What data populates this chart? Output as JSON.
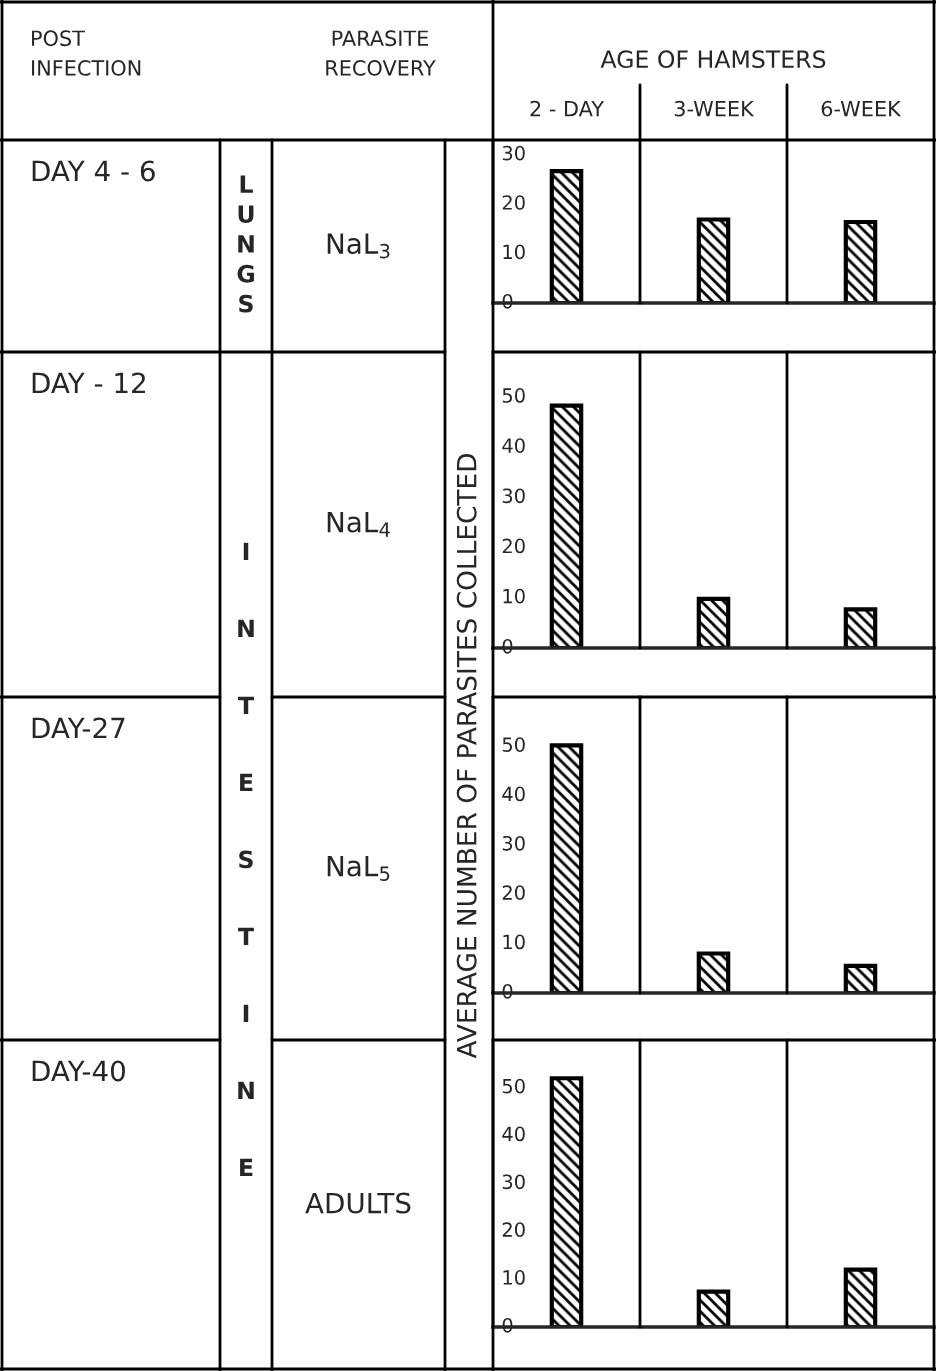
{
  "chart_data": [
    {
      "type": "bar",
      "title": "AGE OF HAMSTERS",
      "ylabel": "AVERAGE NUMBER OF PARASITES COLLECTED",
      "categories": [
        "2 - DAY",
        "3-WEEK",
        "6-WEEK"
      ],
      "values": [
        26.7,
        16.9,
        16.4
      ],
      "color": "#000000",
      "ylim": [
        0,
        33
      ],
      "yticks": [
        0,
        10,
        20,
        30
      ],
      "annotations": [
        "DAY 4 - 6",
        "NaL$_{3}$",
        "LUNGS",
        "POST\nINFECTION",
        "PARASITE\nRECOVERY"
      ]
    },
    {
      "type": "bar",
      "categories": [
        null,
        null,
        null
      ],
      "values": [
        48.3,
        9.8,
        7.7
      ],
      "color": "#000000",
      "ylim": [
        0,
        59
      ],
      "yticks": [
        0,
        10,
        20,
        30,
        40,
        50
      ],
      "tick_labels": "y",
      "annotations": [
        "DAY - 12",
        "NaL$_{4}$",
        "INTESTINE"
      ]
    },
    {
      "type": "bar",
      "categories": [
        null,
        null,
        null
      ],
      "values": [
        50.2,
        8.0,
        5.5
      ],
      "color": "#000000",
      "ylim": [
        0,
        60
      ],
      "yticks": [
        0,
        10,
        20,
        30,
        40,
        50
      ],
      "tick_labels": "y",
      "annotations": [
        "DAY-27",
        "NaL$_{5}$"
      ]
    },
    {
      "type": "bar",
      "categories": [
        null,
        null,
        null
      ],
      "values": [
        52.0,
        7.4,
        12.0
      ],
      "color": "#000000",
      "ylim": [
        0,
        60
      ],
      "yticks": [
        0,
        10,
        20,
        30,
        40,
        50
      ],
      "tick_labels": "y",
      "annotations": [
        "DAY-40",
        "ADULTS"
      ]
    }
  ]
}
